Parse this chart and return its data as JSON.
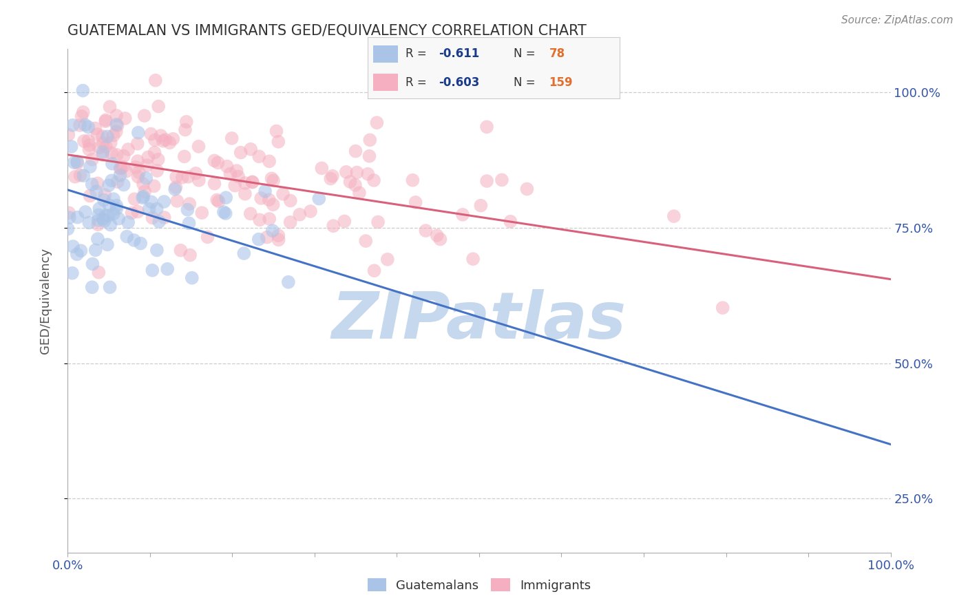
{
  "title": "GUATEMALAN VS IMMIGRANTS GED/EQUIVALENCY CORRELATION CHART",
  "source": "Source: ZipAtlas.com",
  "ylabel": "GED/Equivalency",
  "xlim": [
    0.0,
    1.0
  ],
  "ylim": [
    0.15,
    1.08
  ],
  "x_ticks": [
    0.0,
    0.1,
    0.2,
    0.3,
    0.4,
    0.5,
    0.6,
    0.7,
    0.8,
    0.9,
    1.0
  ],
  "y_ticks": [
    0.25,
    0.5,
    0.75,
    1.0
  ],
  "y_tick_labels": [
    "25.0%",
    "50.0%",
    "75.0%",
    "100.0%"
  ],
  "blue_R": -0.611,
  "blue_N": 78,
  "pink_R": -0.603,
  "pink_N": 159,
  "blue_color": "#aac4e8",
  "pink_color": "#f5afc0",
  "blue_line_color": "#4472c4",
  "pink_line_color": "#d9607a",
  "bg_color": "#ffffff",
  "grid_color": "#c8c8c8",
  "watermark_color": "#c5d8ee",
  "legend_R_color": "#1a3a8a",
  "legend_N_color": "#e07030",
  "title_color": "#333333",
  "axis_label_color": "#3355aa",
  "blue_line_x0": 0.0,
  "blue_line_y0": 0.82,
  "blue_line_x1": 1.0,
  "blue_line_y1": 0.35,
  "pink_line_x0": 0.0,
  "pink_line_y0": 0.885,
  "pink_line_x1": 1.0,
  "pink_line_y1": 0.655
}
